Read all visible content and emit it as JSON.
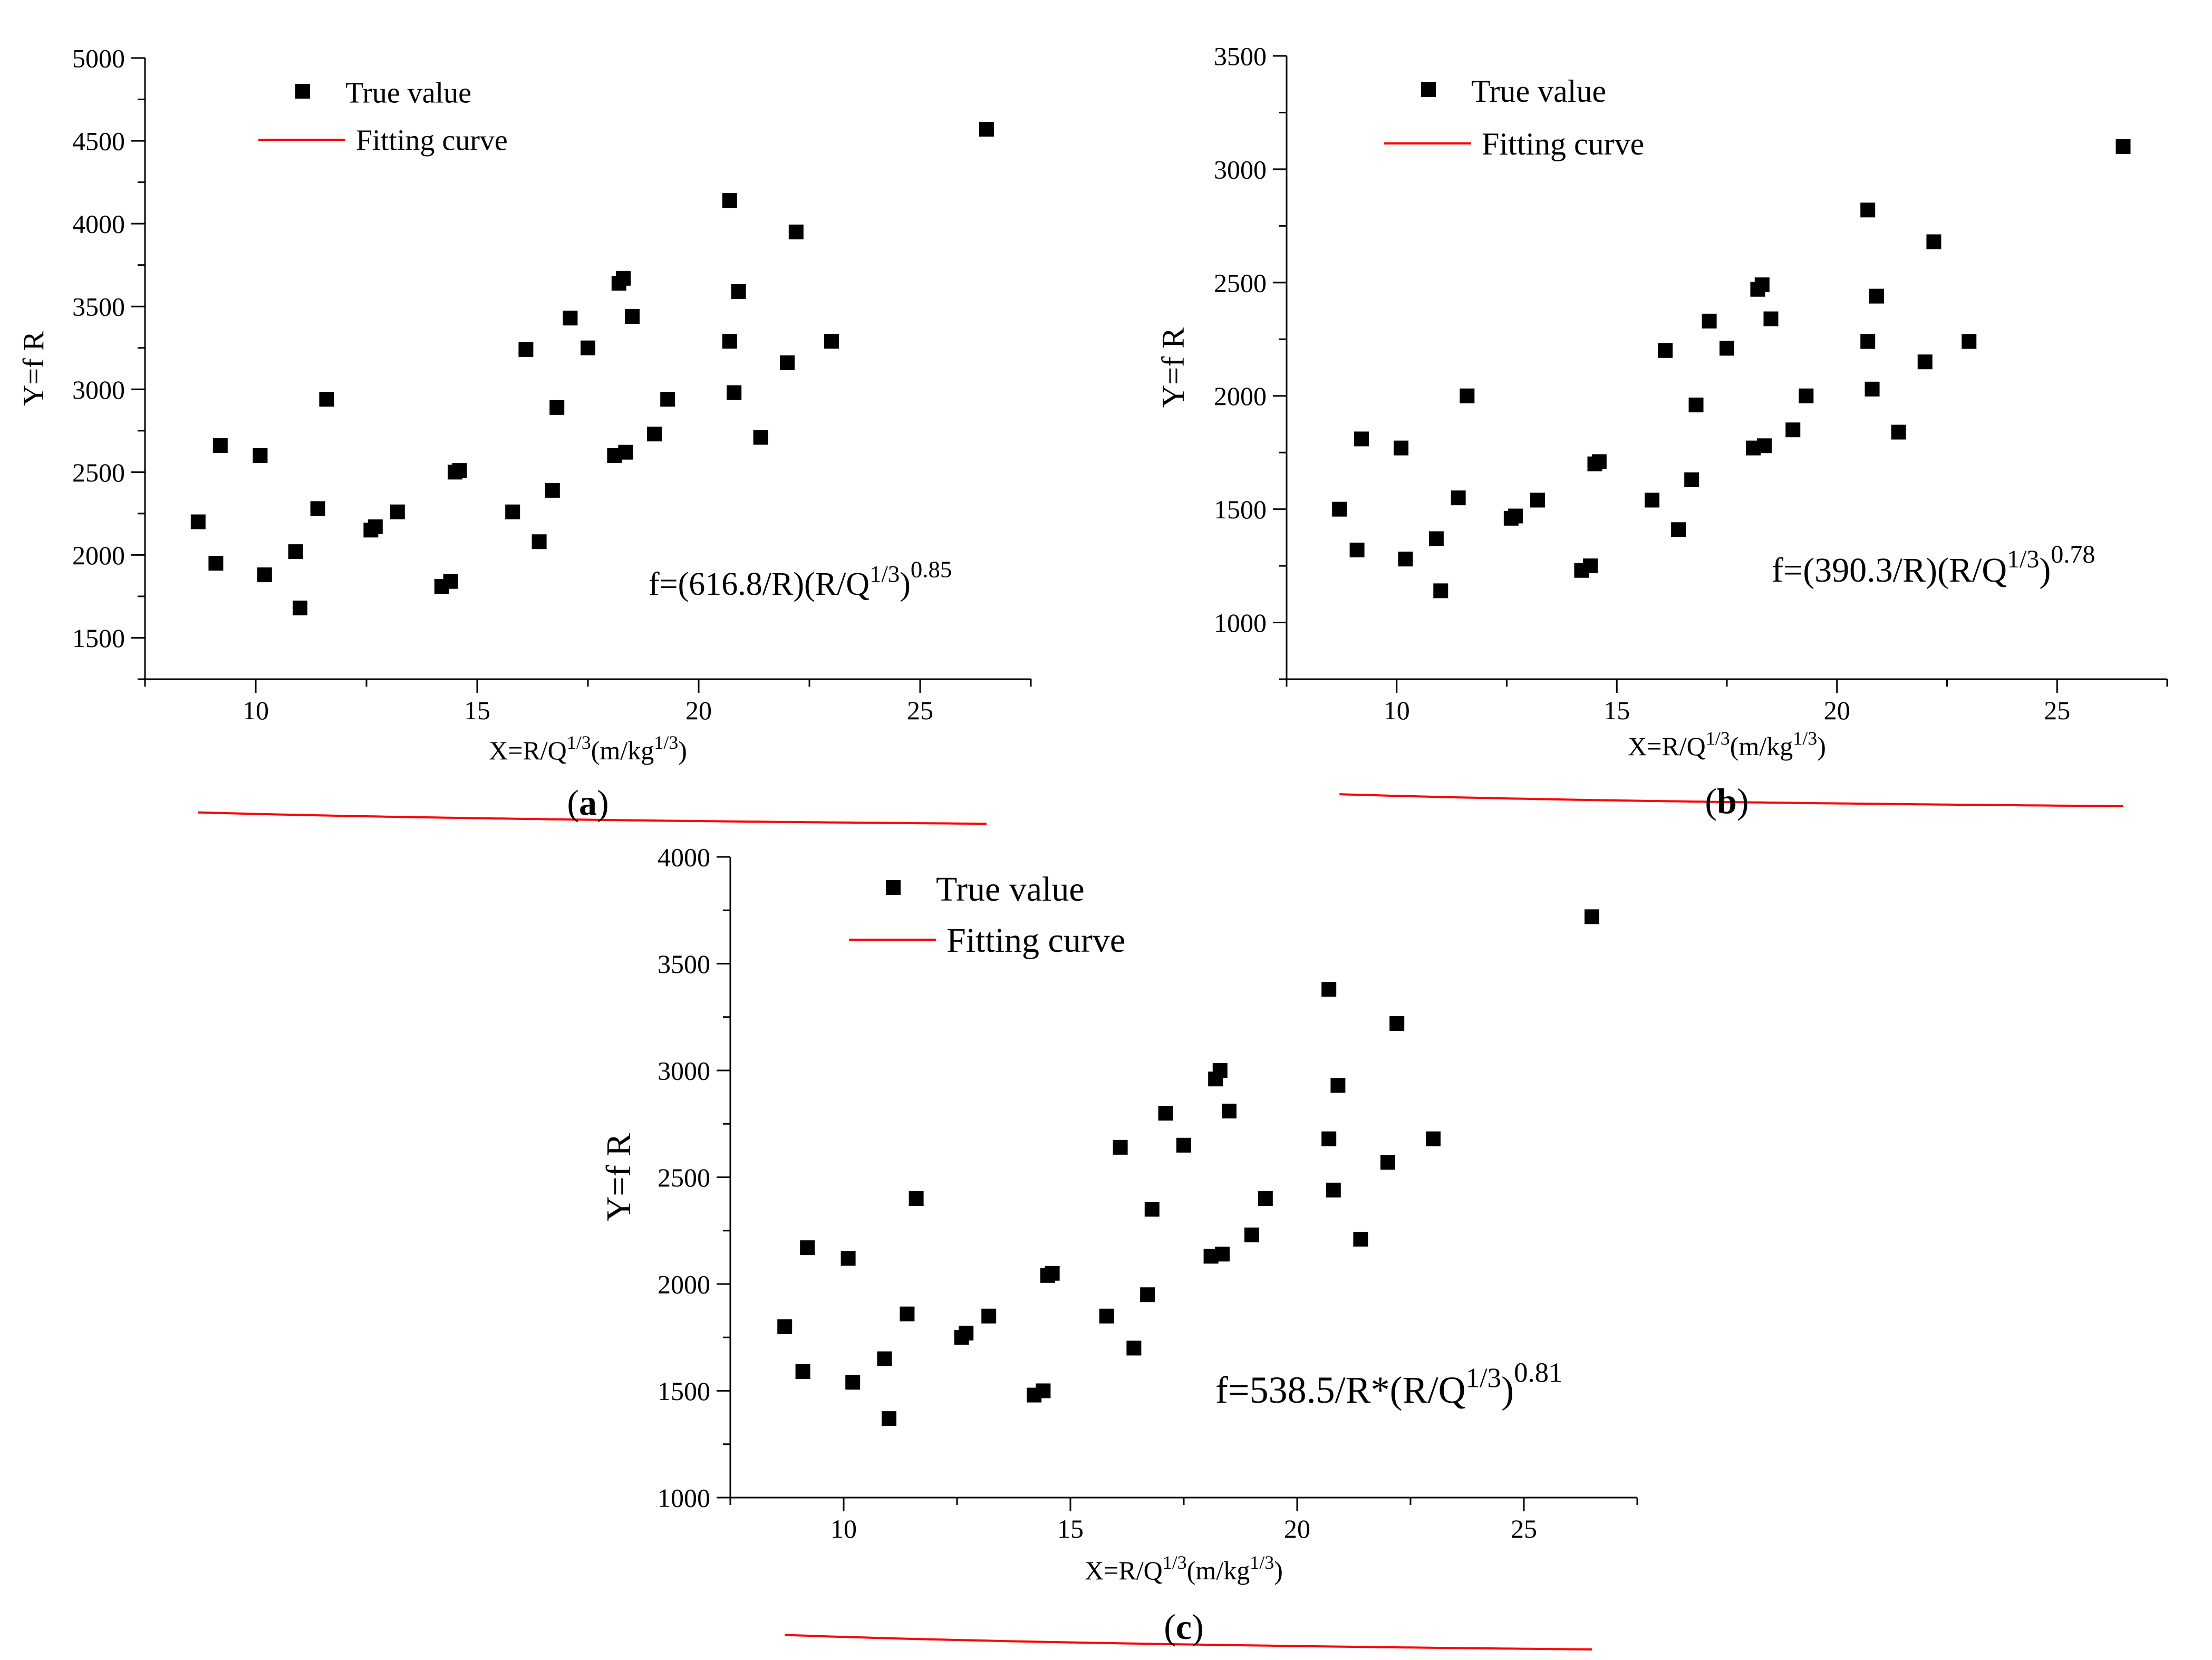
{
  "chart_data": [
    {
      "panel": "a",
      "caption": "a",
      "type": "scatter",
      "ylabel": "Y=f R",
      "xlabel": "X=R/Q",
      "xlabel_sup": "1/3",
      "xlabel_unit": "(m/kg",
      "xlabel_unit_sup": "1/3",
      "xlabel_close": ")",
      "legend": {
        "marker_label": "True value",
        "line_label": "Fitting curve",
        "position": "top-left"
      },
      "equation": {
        "main": "f=(616.8/R)(R/Q",
        "sup1": "1/3",
        "close": ")",
        "exp": "0.85"
      },
      "xlim": [
        7.5,
        27.5
      ],
      "ylim": [
        1250,
        5000
      ],
      "xticks": [
        10,
        15,
        20,
        25
      ],
      "yticks": [
        1500,
        2000,
        2500,
        3000,
        3500,
        4000,
        4500,
        5000
      ],
      "fit": {
        "a": 616.8,
        "b": 0.85,
        "x": [
          8.7,
          26.5
        ]
      },
      "series": [
        {
          "name": "True value",
          "x": [
            8.7,
            9.1,
            9.2,
            10.1,
            10.2,
            10.9,
            11.0,
            11.4,
            11.6,
            12.6,
            12.7,
            13.2,
            14.2,
            14.4,
            14.5,
            14.6,
            15.8,
            16.1,
            16.4,
            16.7,
            16.8,
            17.1,
            17.5,
            18.1,
            18.2,
            18.3,
            18.35,
            18.5,
            19.0,
            19.3,
            20.7,
            20.7,
            20.8,
            20.9,
            21.4,
            22.0,
            22.2,
            23.0,
            26.5
          ],
          "y": [
            2200,
            1950,
            2660,
            2600,
            1880,
            2020,
            1680,
            2280,
            2940,
            2150,
            2170,
            2260,
            1810,
            1840,
            2500,
            2510,
            2260,
            3240,
            2080,
            2390,
            2890,
            3430,
            3250,
            2600,
            3640,
            3670,
            2620,
            3440,
            2730,
            2940,
            4140,
            3290,
            2980,
            3590,
            2710,
            3160,
            3950,
            3290,
            4570
          ]
        }
      ]
    },
    {
      "panel": "b",
      "caption": "b",
      "type": "scatter",
      "ylabel": "Y=f R",
      "xlabel": "X=R/Q",
      "xlabel_sup": "1/3",
      "xlabel_unit": "(m/kg",
      "xlabel_unit_sup": "1/3",
      "xlabel_close": ")",
      "legend": {
        "marker_label": "True value",
        "line_label": "Fitting curve",
        "position": "top-left"
      },
      "equation": {
        "main": "f=(390.3/R)(R/Q",
        "sup1": "1/3",
        "close": ")",
        "exp": "0.78"
      },
      "xlim": [
        7.5,
        27.5
      ],
      "ylim": [
        750,
        3500
      ],
      "xticks": [
        10,
        15,
        20,
        25
      ],
      "yticks": [
        1000,
        1500,
        2000,
        2500,
        3000,
        3500
      ],
      "fit": {
        "a": 390.3,
        "b": 0.78,
        "x": [
          8.7,
          26.5
        ]
      },
      "series": [
        {
          "name": "True value",
          "x": [
            8.7,
            9.1,
            9.2,
            10.1,
            10.2,
            10.9,
            11.0,
            11.4,
            11.6,
            12.6,
            12.7,
            13.2,
            14.2,
            14.4,
            14.5,
            14.6,
            15.8,
            16.1,
            16.4,
            16.7,
            16.8,
            17.1,
            17.5,
            18.1,
            18.2,
            18.3,
            18.35,
            18.5,
            19.0,
            19.3,
            20.7,
            20.7,
            20.8,
            20.9,
            21.4,
            22.0,
            22.2,
            23.0,
            26.5
          ],
          "y": [
            1500,
            1320,
            1810,
            1770,
            1280,
            1370,
            1140,
            1550,
            2000,
            1460,
            1470,
            1540,
            1230,
            1250,
            1700,
            1710,
            1540,
            2200,
            1410,
            1630,
            1960,
            2330,
            2210,
            1770,
            2470,
            2490,
            1780,
            2340,
            1850,
            2000,
            2820,
            2240,
            2030,
            2440,
            1840,
            2150,
            2680,
            2240,
            3100
          ]
        }
      ]
    },
    {
      "panel": "c",
      "caption": "c",
      "type": "scatter",
      "ylabel": "Y=f R",
      "xlabel": "X=R/Q",
      "xlabel_sup": "1/3",
      "xlabel_unit": "(m/kg",
      "xlabel_unit_sup": "1/3",
      "xlabel_close": ")",
      "legend": {
        "marker_label": "True value",
        "line_label": "Fitting curve",
        "position": "top-left"
      },
      "equation": {
        "main": "f=538.5/R*(R/Q",
        "sup1": "1/3",
        "close": ")",
        "exp": "0.81"
      },
      "xlim": [
        7.5,
        27.5
      ],
      "ylim": [
        1000,
        4000
      ],
      "xticks": [
        10,
        15,
        20,
        25
      ],
      "yticks": [
        1000,
        1500,
        2000,
        2500,
        3000,
        3500,
        4000
      ],
      "fit": {
        "a": 538.5,
        "b": 0.81,
        "x": [
          8.7,
          26.5
        ]
      },
      "series": [
        {
          "name": "True value",
          "x": [
            8.7,
            9.1,
            9.2,
            10.1,
            10.2,
            10.9,
            11.0,
            11.4,
            11.6,
            12.6,
            12.7,
            13.2,
            14.2,
            14.4,
            14.5,
            14.6,
            15.8,
            16.1,
            16.4,
            16.7,
            16.8,
            17.1,
            17.5,
            18.1,
            18.2,
            18.3,
            18.35,
            18.5,
            19.0,
            19.3,
            20.7,
            20.7,
            20.8,
            20.9,
            21.4,
            22.0,
            22.2,
            23.0,
            26.5
          ],
          "y": [
            1800,
            1590,
            2170,
            2120,
            1540,
            1650,
            1370,
            1860,
            2400,
            1750,
            1770,
            1850,
            1480,
            1500,
            2040,
            2050,
            1850,
            2640,
            1700,
            1950,
            2350,
            2800,
            2650,
            2130,
            2960,
            3000,
            2140,
            2810,
            2230,
            2400,
            3380,
            2680,
            2440,
            2930,
            2210,
            2570,
            3220,
            2680,
            3720
          ]
        }
      ]
    }
  ]
}
